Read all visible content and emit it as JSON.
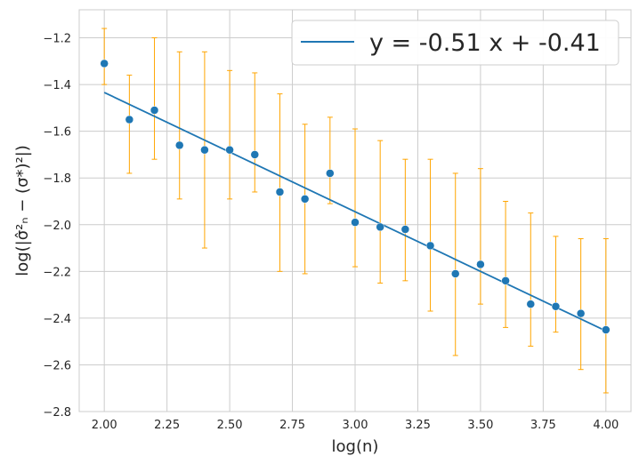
{
  "chart_data": {
    "type": "scatter",
    "xlabel": "log(n)",
    "ylabel": "log(|σ̂²ₙ − (σ*)²|)",
    "xlim": [
      1.9,
      4.1
    ],
    "ylim": [
      -2.8,
      -1.08
    ],
    "x_ticks": [
      2.0,
      2.25,
      2.5,
      2.75,
      3.0,
      3.25,
      3.5,
      3.75,
      4.0
    ],
    "x_tick_labels": [
      "2.00",
      "2.25",
      "2.50",
      "2.75",
      "3.00",
      "3.25",
      "3.50",
      "3.75",
      "4.00"
    ],
    "y_ticks": [
      -1.2,
      -1.4,
      -1.6,
      -1.8,
      -2.0,
      -2.2,
      -2.4,
      -2.6,
      -2.8
    ],
    "y_tick_labels": [
      "−1.2",
      "−1.4",
      "−1.6",
      "−1.8",
      "−2.0",
      "−2.2",
      "−2.4",
      "−2.6",
      "−2.8"
    ],
    "grid": true,
    "legend_position": "top-right",
    "colors": {
      "points": "#1f77b4",
      "fit_line": "#1f77b4",
      "error_bars": "#ffa500",
      "grid": "#cccccc",
      "frame": "#cccccc"
    },
    "points": {
      "x": [
        2.0,
        2.1,
        2.2,
        2.3,
        2.4,
        2.5,
        2.6,
        2.7,
        2.8,
        2.9,
        3.0,
        3.1,
        3.2,
        3.3,
        3.4,
        3.5,
        3.6,
        3.7,
        3.8,
        3.9,
        4.0
      ],
      "y": [
        -1.31,
        -1.55,
        -1.51,
        -1.66,
        -1.68,
        -1.68,
        -1.7,
        -1.86,
        -1.89,
        -1.78,
        -1.99,
        -2.01,
        -2.02,
        -2.09,
        -2.21,
        -2.17,
        -2.24,
        -2.34,
        -2.35,
        -2.38,
        -2.45
      ],
      "err_low": [
        -1.4,
        -1.78,
        -1.72,
        -1.89,
        -2.1,
        -1.89,
        -1.86,
        -2.2,
        -2.21,
        -1.91,
        -2.18,
        -2.25,
        -2.24,
        -2.37,
        -2.56,
        -2.34,
        -2.44,
        -2.52,
        -2.46,
        -2.62,
        -2.72
      ],
      "err_high": [
        -1.16,
        -1.36,
        -1.2,
        -1.26,
        -1.26,
        -1.34,
        -1.35,
        -1.44,
        -1.57,
        -1.54,
        -1.59,
        -1.64,
        -1.72,
        -1.72,
        -1.78,
        -1.76,
        -1.9,
        -1.95,
        -2.05,
        -2.06,
        -2.06
      ]
    },
    "fit": {
      "label": "y = -0.51 x + -0.41",
      "x": [
        2.0,
        4.0
      ],
      "y": [
        -1.434,
        -2.455
      ]
    }
  }
}
